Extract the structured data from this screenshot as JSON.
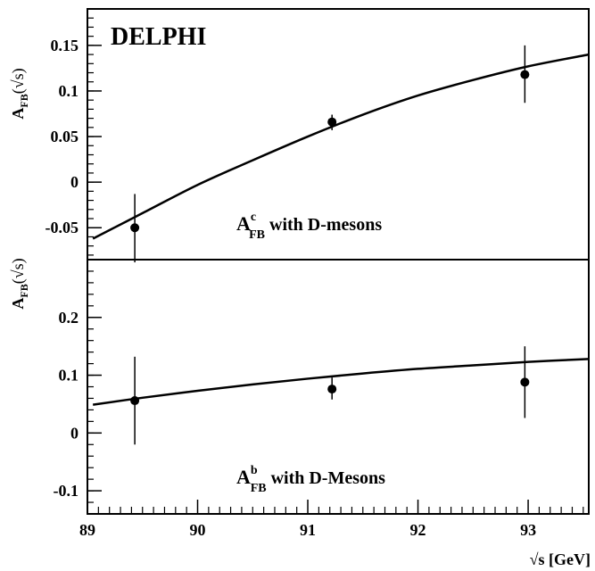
{
  "chart_data": [
    {
      "type": "scatter",
      "panel": "top",
      "experiment_label": "DELPHI",
      "ylabel": {
        "main": "A",
        "sub": "FB",
        "arg": "(√s)"
      },
      "annotation": {
        "main": "A",
        "sup": "c",
        "sub": "FB",
        "rest": " with D-mesons"
      },
      "xlim": [
        89.0,
        93.55
      ],
      "ylim": [
        -0.085,
        0.19
      ],
      "yticks": [
        {
          "v": 0.15,
          "label": "0.15"
        },
        {
          "v": 0.1,
          "label": "0.1"
        },
        {
          "v": 0.05,
          "label": "0.05"
        },
        {
          "v": 0,
          "label": "0"
        },
        {
          "v": -0.05,
          "label": "-0.05"
        }
      ],
      "points": [
        {
          "x": 89.43,
          "y": -0.05,
          "ylo": -0.088,
          "yhi": -0.013
        },
        {
          "x": 91.22,
          "y": 0.066,
          "ylo": 0.057,
          "yhi": 0.074
        },
        {
          "x": 92.97,
          "y": 0.118,
          "ylo": 0.087,
          "yhi": 0.15
        }
      ],
      "curve": [
        {
          "x": 89.05,
          "y": -0.062
        },
        {
          "x": 89.5,
          "y": -0.034
        },
        {
          "x": 90.0,
          "y": -0.003
        },
        {
          "x": 90.5,
          "y": 0.024
        },
        {
          "x": 91.0,
          "y": 0.05
        },
        {
          "x": 91.5,
          "y": 0.074
        },
        {
          "x": 92.0,
          "y": 0.095
        },
        {
          "x": 92.5,
          "y": 0.112
        },
        {
          "x": 93.0,
          "y": 0.127
        },
        {
          "x": 93.55,
          "y": 0.14
        }
      ]
    },
    {
      "type": "scatter",
      "panel": "bottom",
      "xlabel": "√s [GeV]",
      "ylabel": {
        "main": "A",
        "sub": "FB",
        "arg": "(√s)"
      },
      "annotation": {
        "main": "A",
        "sup": "b",
        "sub": "FB",
        "rest": " with D-Mesons"
      },
      "xlim": [
        89.0,
        93.55
      ],
      "ylim": [
        -0.14,
        0.3
      ],
      "xticks": [
        {
          "v": 89,
          "label": "89"
        },
        {
          "v": 90,
          "label": "90"
        },
        {
          "v": 91,
          "label": "91"
        },
        {
          "v": 92,
          "label": "92"
        },
        {
          "v": 93,
          "label": "93"
        }
      ],
      "yticks": [
        {
          "v": 0.2,
          "label": "0.2"
        },
        {
          "v": 0.1,
          "label": "0.1"
        },
        {
          "v": 0,
          "label": "0"
        },
        {
          "v": -0.1,
          "label": "-0.1"
        }
      ],
      "points": [
        {
          "x": 89.43,
          "y": 0.056,
          "ylo": -0.02,
          "yhi": 0.132
        },
        {
          "x": 91.22,
          "y": 0.076,
          "ylo": 0.058,
          "yhi": 0.096
        },
        {
          "x": 92.97,
          "y": 0.088,
          "ylo": 0.026,
          "yhi": 0.15
        }
      ],
      "curve": [
        {
          "x": 89.05,
          "y": 0.049
        },
        {
          "x": 89.5,
          "y": 0.061
        },
        {
          "x": 90.0,
          "y": 0.073
        },
        {
          "x": 90.5,
          "y": 0.084
        },
        {
          "x": 91.0,
          "y": 0.094
        },
        {
          "x": 91.5,
          "y": 0.103
        },
        {
          "x": 92.0,
          "y": 0.111
        },
        {
          "x": 92.5,
          "y": 0.117
        },
        {
          "x": 93.0,
          "y": 0.123
        },
        {
          "x": 93.55,
          "y": 0.128
        }
      ]
    }
  ]
}
